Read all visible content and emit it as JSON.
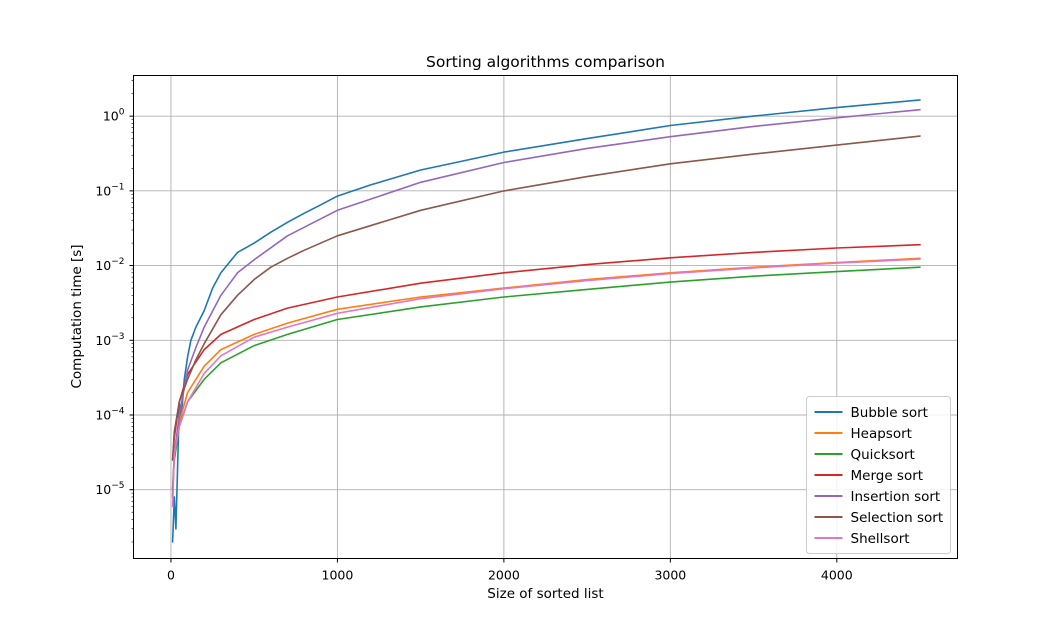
{
  "chart_data": {
    "type": "line",
    "title": "Sorting algorithms comparison",
    "xlabel": "Size of sorted list",
    "ylabel": "Computation time [s]",
    "xlim": [
      -225,
      4725
    ],
    "ylim": [
      1.2e-06,
      3.5
    ],
    "yscale": "log",
    "grid": true,
    "legend_position": "lower-right",
    "xticks": [
      {
        "value": 0,
        "label": "0"
      },
      {
        "value": 1000,
        "label": "1000"
      },
      {
        "value": 2000,
        "label": "2000"
      },
      {
        "value": 3000,
        "label": "3000"
      },
      {
        "value": 4000,
        "label": "4000"
      }
    ],
    "yticks": [
      {
        "value": 1e-05,
        "base": "10",
        "exp": "−5"
      },
      {
        "value": 0.0001,
        "base": "10",
        "exp": "−4"
      },
      {
        "value": 0.001,
        "base": "10",
        "exp": "−3"
      },
      {
        "value": 0.01,
        "base": "10",
        "exp": "−2"
      },
      {
        "value": 0.1,
        "base": "10",
        "exp": "−1"
      },
      {
        "value": 1,
        "base": "10",
        "exp": "0"
      }
    ],
    "series": [
      {
        "name": "Bubble sort",
        "color": "#1f77b4",
        "x": [
          10,
          20,
          30,
          40,
          50,
          60,
          80,
          100,
          120,
          150,
          200,
          250,
          300,
          400,
          500,
          600,
          700,
          800,
          900,
          1000,
          1200,
          1500,
          1750,
          2000,
          2500,
          3000,
          3500,
          4000,
          4500
        ],
        "y": [
          2e-06,
          8e-06,
          3e-06,
          2e-05,
          0.00015,
          8e-05,
          0.0003,
          0.0006,
          0.001,
          0.0015,
          0.0025,
          0.005,
          0.008,
          0.015,
          0.02,
          0.028,
          0.038,
          0.05,
          0.065,
          0.085,
          0.12,
          0.19,
          0.25,
          0.33,
          0.5,
          0.75,
          1.0,
          1.3,
          1.65
        ]
      },
      {
        "name": "Heapsort",
        "color": "#ff7f0e",
        "x": [
          10,
          20,
          50,
          100,
          200,
          300,
          500,
          700,
          1000,
          1500,
          2000,
          2500,
          3000,
          3500,
          4000,
          4500
        ],
        "y": [
          1e-05,
          3e-05,
          8e-05,
          0.0002,
          0.00045,
          0.00075,
          0.0012,
          0.0017,
          0.0026,
          0.0038,
          0.005,
          0.0065,
          0.008,
          0.0095,
          0.011,
          0.0125
        ]
      },
      {
        "name": "Quicksort",
        "color": "#2ca02c",
        "x": [
          10,
          20,
          50,
          100,
          200,
          300,
          500,
          700,
          1000,
          1500,
          2000,
          2500,
          3000,
          3500,
          4000,
          4500
        ],
        "y": [
          1e-05,
          2.5e-05,
          7e-05,
          0.00015,
          0.0003,
          0.0005,
          0.00085,
          0.0012,
          0.0019,
          0.0028,
          0.0038,
          0.0048,
          0.006,
          0.0072,
          0.0083,
          0.0095
        ]
      },
      {
        "name": "Merge sort",
        "color": "#d62728",
        "x": [
          10,
          20,
          50,
          100,
          200,
          300,
          500,
          700,
          1000,
          1500,
          2000,
          2500,
          3000,
          3500,
          4000,
          4500
        ],
        "y": [
          2.5e-05,
          5e-05,
          0.00015,
          0.00035,
          0.00075,
          0.0012,
          0.0019,
          0.0027,
          0.0038,
          0.0058,
          0.008,
          0.0103,
          0.0127,
          0.015,
          0.0172,
          0.019
        ]
      },
      {
        "name": "Insertion sort",
        "color": "#9467bd",
        "x": [
          10,
          20,
          50,
          100,
          150,
          200,
          300,
          400,
          500,
          700,
          1000,
          1500,
          2000,
          2500,
          3000,
          3500,
          4000,
          4500
        ],
        "y": [
          8e-06,
          3e-05,
          0.0001,
          0.0004,
          0.0008,
          0.0015,
          0.004,
          0.008,
          0.012,
          0.025,
          0.055,
          0.13,
          0.24,
          0.37,
          0.53,
          0.73,
          0.95,
          1.22
        ]
      },
      {
        "name": "Selection sort",
        "color": "#8c564b",
        "x": [
          10,
          20,
          50,
          100,
          150,
          200,
          300,
          400,
          500,
          600,
          700,
          800,
          1000,
          1500,
          2000,
          2500,
          3000,
          3500,
          4000,
          4500
        ],
        "y": [
          2.5e-05,
          6e-05,
          0.00015,
          0.0003,
          0.00055,
          0.0009,
          0.0022,
          0.004,
          0.0065,
          0.0095,
          0.0125,
          0.016,
          0.025,
          0.055,
          0.1,
          0.155,
          0.23,
          0.31,
          0.41,
          0.54
        ]
      },
      {
        "name": "Shellsort",
        "color": "#e377c2",
        "x": [
          10,
          20,
          50,
          100,
          200,
          300,
          500,
          700,
          1000,
          1500,
          2000,
          2500,
          3000,
          3500,
          4000,
          4500
        ],
        "y": [
          6e-06,
          3e-05,
          7e-05,
          0.00015,
          0.00036,
          0.00062,
          0.0011,
          0.0015,
          0.0023,
          0.0036,
          0.0049,
          0.0063,
          0.0078,
          0.0093,
          0.0108,
          0.0122
        ]
      }
    ]
  }
}
